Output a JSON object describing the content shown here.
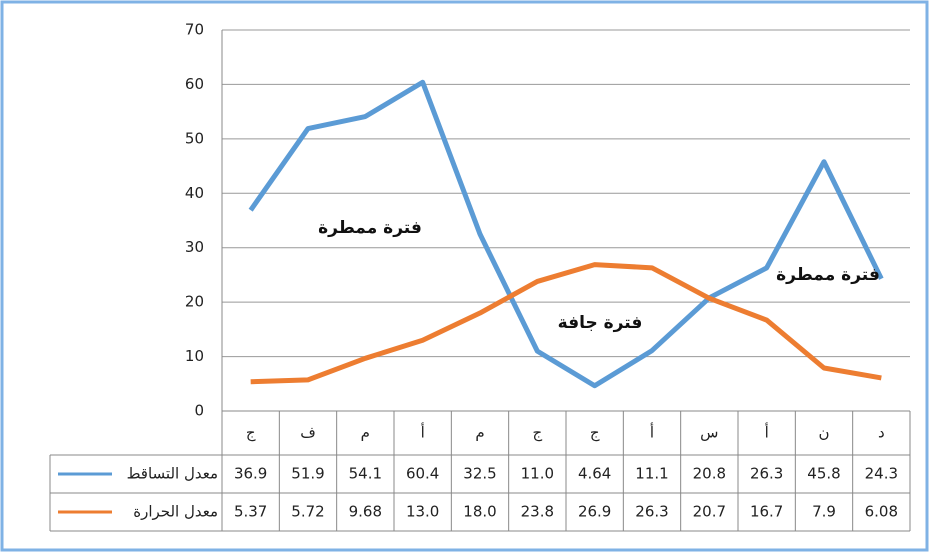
{
  "chart_data": {
    "type": "line",
    "categories": [
      "ج",
      "ف",
      "م",
      "أ",
      "م",
      "ج",
      "ج",
      "أ",
      "س",
      "أ",
      "ن",
      "د"
    ],
    "series": [
      {
        "name": "معدل التساقط",
        "color": "#5b9bd5",
        "values": [
          36.9,
          51.9,
          54.1,
          60.4,
          32.5,
          11.0,
          4.64,
          11.1,
          20.8,
          26.3,
          45.8,
          24.3
        ],
        "value_labels": [
          "36.9",
          "51.9",
          "54.1",
          "60.4",
          "32.5",
          "11.0",
          "4.64",
          "11.1",
          "20.8",
          "26.3",
          "45.8",
          "24.3"
        ]
      },
      {
        "name": "معدل الحرارة",
        "color": "#ed7d31",
        "values": [
          5.37,
          5.72,
          9.68,
          13.0,
          18.0,
          23.8,
          26.9,
          26.3,
          20.7,
          16.7,
          7.9,
          6.08
        ],
        "value_labels": [
          "5.37",
          "5.72",
          "9.68",
          "13.0",
          "18.0",
          "23.8",
          "26.9",
          "26.3",
          "20.7",
          "16.7",
          "7.9",
          "6.08"
        ]
      }
    ],
    "ylim": [
      0,
      70
    ],
    "yticks": [
      0,
      10,
      20,
      30,
      40,
      50,
      60,
      70
    ],
    "grid": true,
    "annotations": [
      {
        "text": "فترة ممطرة"
      },
      {
        "text": "فترة جافة"
      },
      {
        "text": "فترة ممطرة"
      }
    ]
  }
}
